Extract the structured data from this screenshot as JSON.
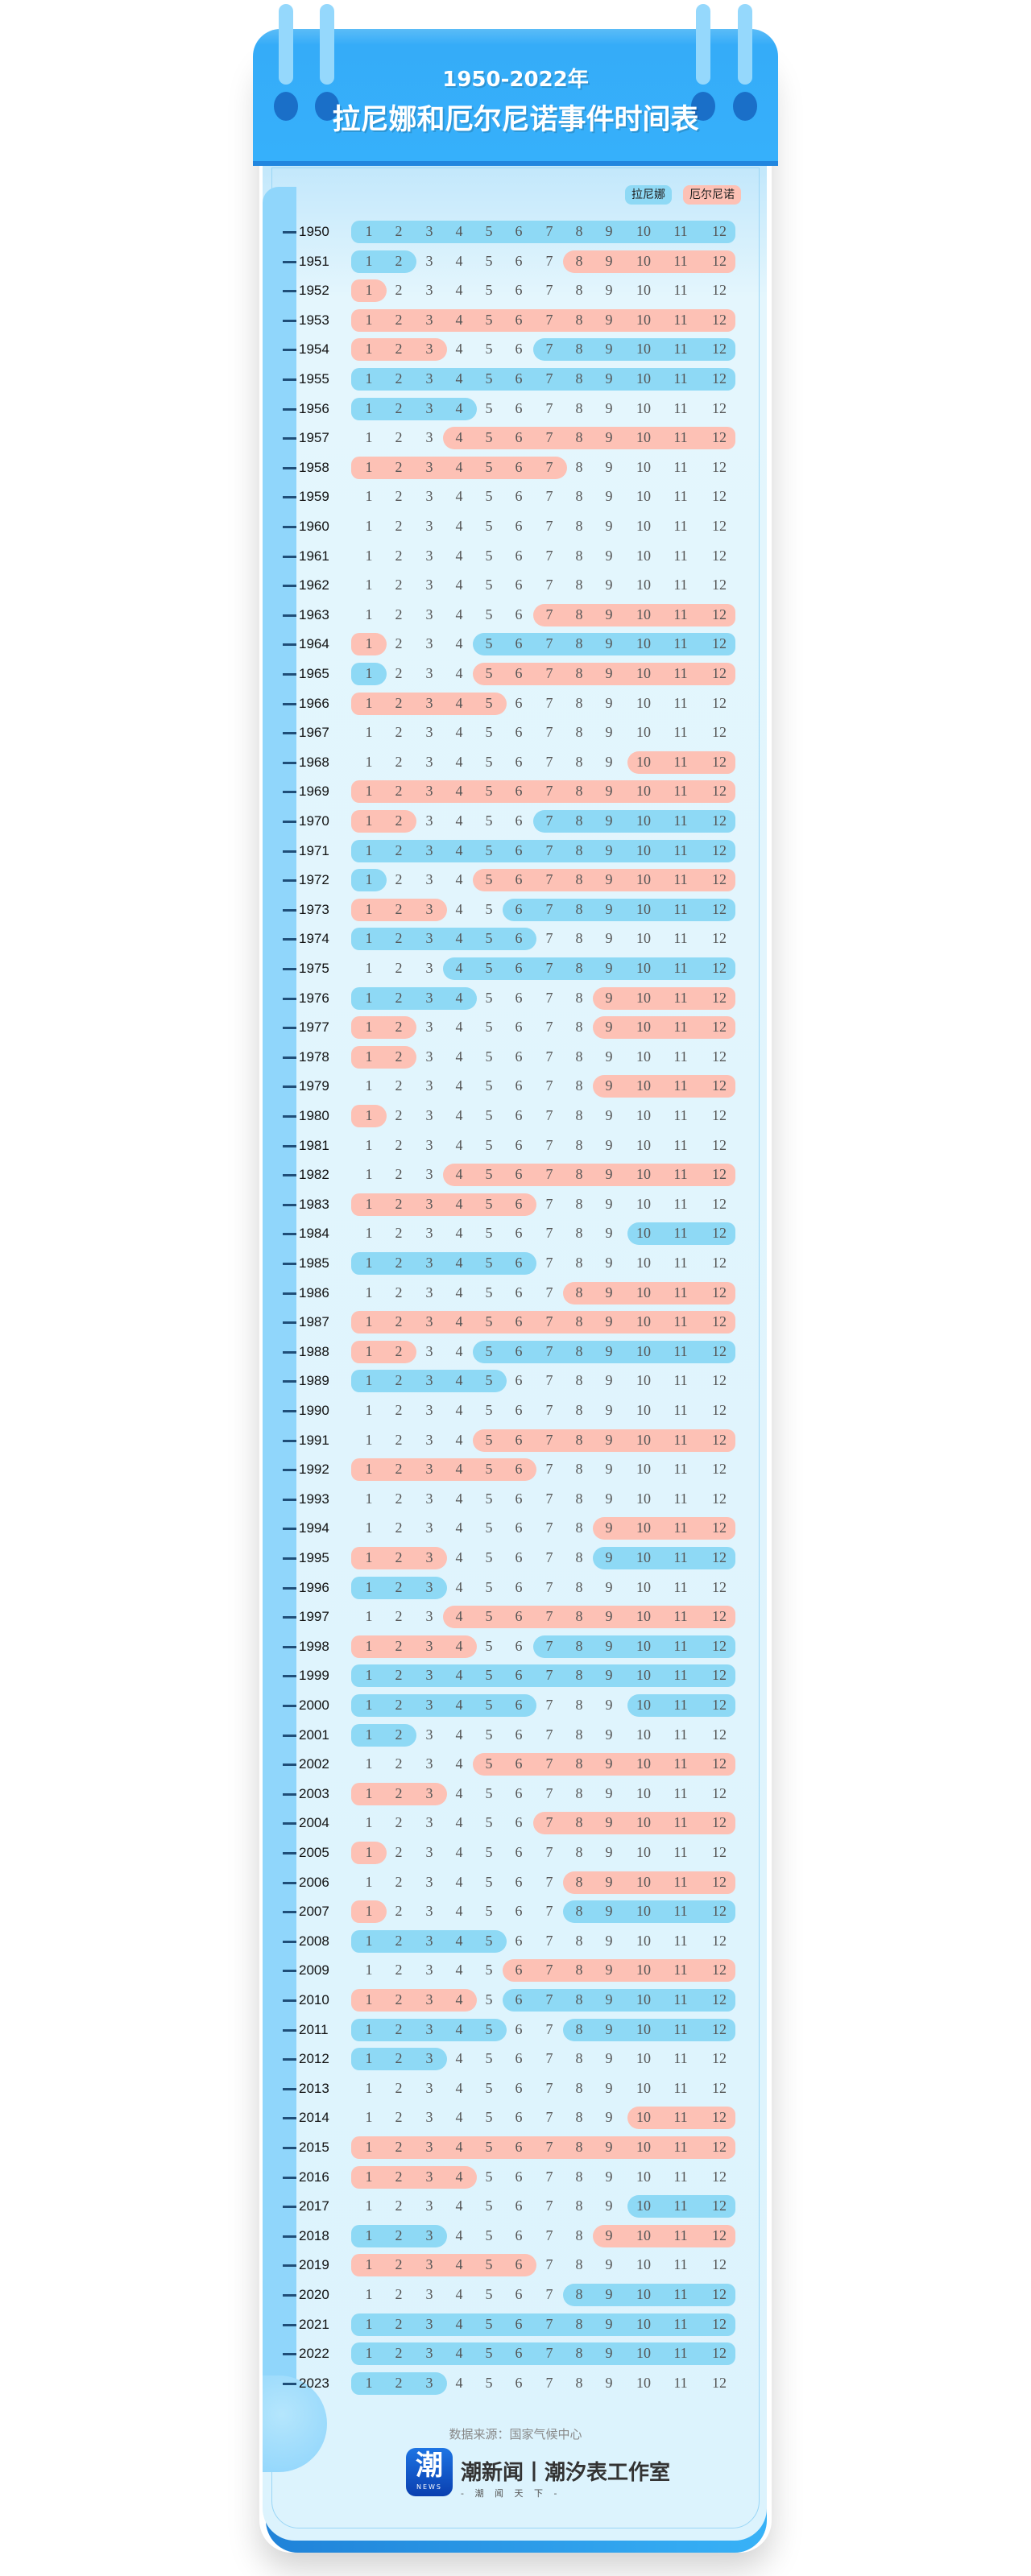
{
  "header": {
    "subtitle": "1950-2022年",
    "title": "拉尼娜和厄尔尼诺事件时间表"
  },
  "legend": {
    "la_nina": "拉尼娜",
    "el_nino": "厄尔尼诺"
  },
  "colors": {
    "la_nina": "#8ed9f5",
    "el_nino": "#fdc1b5"
  },
  "months": [
    "1",
    "2",
    "3",
    "4",
    "5",
    "6",
    "7",
    "8",
    "9",
    "10",
    "11",
    "12"
  ],
  "years": [
    {
      "year": "1950",
      "events": [
        [
          "L",
          1,
          12
        ]
      ]
    },
    {
      "year": "1951",
      "events": [
        [
          "L",
          1,
          2
        ],
        [
          "E",
          8,
          12
        ]
      ]
    },
    {
      "year": "1952",
      "events": [
        [
          "E",
          1,
          1
        ]
      ]
    },
    {
      "year": "1953",
      "events": [
        [
          "E",
          1,
          12
        ]
      ]
    },
    {
      "year": "1954",
      "events": [
        [
          "E",
          1,
          3
        ],
        [
          "L",
          7,
          12
        ]
      ]
    },
    {
      "year": "1955",
      "events": [
        [
          "L",
          1,
          12
        ]
      ]
    },
    {
      "year": "1956",
      "events": [
        [
          "L",
          1,
          4
        ]
      ]
    },
    {
      "year": "1957",
      "events": [
        [
          "E",
          4,
          12
        ]
      ]
    },
    {
      "year": "1958",
      "events": [
        [
          "E",
          1,
          7
        ]
      ]
    },
    {
      "year": "1959",
      "events": []
    },
    {
      "year": "1960",
      "events": []
    },
    {
      "year": "1961",
      "events": []
    },
    {
      "year": "1962",
      "events": []
    },
    {
      "year": "1963",
      "events": [
        [
          "E",
          7,
          12
        ]
      ]
    },
    {
      "year": "1964",
      "events": [
        [
          "E",
          1,
          1
        ],
        [
          "L",
          5,
          12
        ]
      ]
    },
    {
      "year": "1965",
      "events": [
        [
          "L",
          1,
          1
        ],
        [
          "E",
          5,
          12
        ]
      ]
    },
    {
      "year": "1966",
      "events": [
        [
          "E",
          1,
          5
        ]
      ]
    },
    {
      "year": "1967",
      "events": []
    },
    {
      "year": "1968",
      "events": [
        [
          "E",
          10,
          12
        ]
      ]
    },
    {
      "year": "1969",
      "events": [
        [
          "E",
          1,
          12
        ]
      ]
    },
    {
      "year": "1970",
      "events": [
        [
          "E",
          1,
          2
        ],
        [
          "L",
          7,
          12
        ]
      ]
    },
    {
      "year": "1971",
      "events": [
        [
          "L",
          1,
          12
        ]
      ]
    },
    {
      "year": "1972",
      "events": [
        [
          "L",
          1,
          1
        ],
        [
          "E",
          5,
          12
        ]
      ]
    },
    {
      "year": "1973",
      "events": [
        [
          "E",
          1,
          3
        ],
        [
          "L",
          6,
          12
        ]
      ]
    },
    {
      "year": "1974",
      "events": [
        [
          "L",
          1,
          6
        ]
      ]
    },
    {
      "year": "1975",
      "events": [
        [
          "L",
          4,
          12
        ]
      ]
    },
    {
      "year": "1976",
      "events": [
        [
          "L",
          1,
          4
        ],
        [
          "E",
          9,
          12
        ]
      ]
    },
    {
      "year": "1977",
      "events": [
        [
          "E",
          1,
          2
        ],
        [
          "E",
          9,
          12
        ]
      ]
    },
    {
      "year": "1978",
      "events": [
        [
          "E",
          1,
          2
        ]
      ]
    },
    {
      "year": "1979",
      "events": [
        [
          "E",
          9,
          12
        ]
      ]
    },
    {
      "year": "1980",
      "events": [
        [
          "E",
          1,
          1
        ]
      ]
    },
    {
      "year": "1981",
      "events": []
    },
    {
      "year": "1982",
      "events": [
        [
          "E",
          4,
          12
        ]
      ]
    },
    {
      "year": "1983",
      "events": [
        [
          "E",
          1,
          6
        ]
      ]
    },
    {
      "year": "1984",
      "events": [
        [
          "L",
          10,
          12
        ]
      ]
    },
    {
      "year": "1985",
      "events": [
        [
          "L",
          1,
          6
        ]
      ]
    },
    {
      "year": "1986",
      "events": [
        [
          "E",
          8,
          12
        ]
      ]
    },
    {
      "year": "1987",
      "events": [
        [
          "E",
          1,
          12
        ]
      ]
    },
    {
      "year": "1988",
      "events": [
        [
          "E",
          1,
          2
        ],
        [
          "L",
          5,
          12
        ]
      ]
    },
    {
      "year": "1989",
      "events": [
        [
          "L",
          1,
          5
        ]
      ]
    },
    {
      "year": "1990",
      "events": []
    },
    {
      "year": "1991",
      "events": [
        [
          "E",
          5,
          12
        ]
      ]
    },
    {
      "year": "1992",
      "events": [
        [
          "E",
          1,
          6
        ]
      ]
    },
    {
      "year": "1993",
      "events": []
    },
    {
      "year": "1994",
      "events": [
        [
          "E",
          9,
          12
        ]
      ]
    },
    {
      "year": "1995",
      "events": [
        [
          "E",
          1,
          3
        ],
        [
          "L",
          9,
          12
        ]
      ]
    },
    {
      "year": "1996",
      "events": [
        [
          "L",
          1,
          3
        ]
      ]
    },
    {
      "year": "1997",
      "events": [
        [
          "E",
          4,
          12
        ]
      ]
    },
    {
      "year": "1998",
      "events": [
        [
          "E",
          1,
          4
        ],
        [
          "L",
          7,
          12
        ]
      ]
    },
    {
      "year": "1999",
      "events": [
        [
          "L",
          1,
          12
        ]
      ]
    },
    {
      "year": "2000",
      "events": [
        [
          "L",
          1,
          6
        ],
        [
          "L",
          10,
          12
        ]
      ]
    },
    {
      "year": "2001",
      "events": [
        [
          "L",
          1,
          2
        ]
      ]
    },
    {
      "year": "2002",
      "events": [
        [
          "E",
          5,
          12
        ]
      ]
    },
    {
      "year": "2003",
      "events": [
        [
          "E",
          1,
          3
        ]
      ]
    },
    {
      "year": "2004",
      "events": [
        [
          "E",
          7,
          12
        ]
      ]
    },
    {
      "year": "2005",
      "events": [
        [
          "E",
          1,
          1
        ]
      ]
    },
    {
      "year": "2006",
      "events": [
        [
          "E",
          8,
          12
        ]
      ]
    },
    {
      "year": "2007",
      "events": [
        [
          "E",
          1,
          1
        ],
        [
          "L",
          8,
          12
        ]
      ]
    },
    {
      "year": "2008",
      "events": [
        [
          "L",
          1,
          5
        ]
      ]
    },
    {
      "year": "2009",
      "events": [
        [
          "E",
          6,
          12
        ]
      ]
    },
    {
      "year": "2010",
      "events": [
        [
          "E",
          1,
          4
        ],
        [
          "L",
          6,
          12
        ]
      ]
    },
    {
      "year": "2011",
      "events": [
        [
          "L",
          1,
          5
        ],
        [
          "L",
          8,
          12
        ]
      ]
    },
    {
      "year": "2012",
      "events": [
        [
          "L",
          1,
          3
        ]
      ]
    },
    {
      "year": "2013",
      "events": []
    },
    {
      "year": "2014",
      "events": [
        [
          "E",
          10,
          12
        ]
      ]
    },
    {
      "year": "2015",
      "events": [
        [
          "E",
          1,
          12
        ]
      ]
    },
    {
      "year": "2016",
      "events": [
        [
          "E",
          1,
          4
        ]
      ]
    },
    {
      "year": "2017",
      "events": [
        [
          "L",
          10,
          12
        ]
      ]
    },
    {
      "year": "2018",
      "events": [
        [
          "L",
          1,
          3
        ],
        [
          "E",
          9,
          12
        ]
      ]
    },
    {
      "year": "2019",
      "events": [
        [
          "E",
          1,
          6
        ]
      ]
    },
    {
      "year": "2020",
      "events": [
        [
          "L",
          8,
          12
        ]
      ]
    },
    {
      "year": "2021",
      "events": [
        [
          "L",
          1,
          12
        ]
      ]
    },
    {
      "year": "2022",
      "events": [
        [
          "L",
          1,
          12
        ]
      ]
    },
    {
      "year": "2023",
      "events": [
        [
          "L",
          1,
          3
        ]
      ]
    }
  ],
  "footer": {
    "source": "数据来源：国家气候中心",
    "logo_char": "潮",
    "logo_sub": "NEWS",
    "brand": "潮新闻丨潮汐表工作室",
    "slogan": "- 潮 闻 天 下 -"
  }
}
